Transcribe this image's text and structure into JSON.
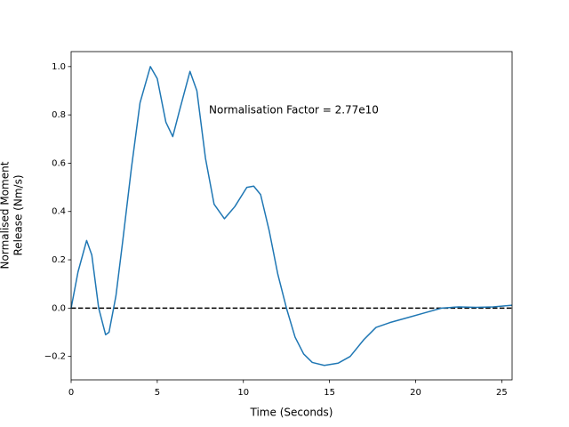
{
  "chart_data": {
    "type": "line",
    "xlabel": "Time (Seconds)",
    "ylabel": [
      "Normalised Moment",
      "Release (Nm/s)"
    ],
    "annotation": "Normalisation Factor = 2.77e10",
    "x": [
      0,
      0.4,
      0.9,
      1.2,
      1.6,
      2.0,
      2.2,
      2.6,
      3.0,
      3.5,
      4.0,
      4.6,
      5.0,
      5.5,
      5.9,
      6.3,
      6.9,
      7.3,
      7.8,
      8.3,
      8.9,
      9.5,
      10.2,
      10.6,
      11.0,
      11.5,
      12.0,
      12.5,
      13.0,
      13.5,
      14.0,
      14.7,
      15.5,
      16.2,
      17.0,
      17.7,
      18.5,
      19.5,
      20.5,
      21.5,
      22.5,
      23.5,
      24.5,
      25.6
    ],
    "series": [
      {
        "color": "#1f77b4",
        "values": [
          0,
          0.15,
          0.28,
          0.22,
          0.0,
          -0.11,
          -0.1,
          0.05,
          0.28,
          0.58,
          0.85,
          1.0,
          0.95,
          0.77,
          0.71,
          0.82,
          0.98,
          0.9,
          0.62,
          0.43,
          0.37,
          0.42,
          0.5,
          0.505,
          0.47,
          0.32,
          0.14,
          0.0,
          -0.12,
          -0.19,
          -0.225,
          -0.237,
          -0.228,
          -0.2,
          -0.13,
          -0.08,
          -0.06,
          -0.04,
          -0.02,
          0.0,
          0.005,
          0.003,
          0.005,
          0.012
        ]
      }
    ],
    "reference_line": {
      "value": 0,
      "color": "#000000",
      "style": "dashed"
    },
    "xlim": [
      0,
      25.6
    ],
    "ylim": [
      -0.297,
      1.062
    ],
    "xticks": [
      0,
      5,
      10,
      15,
      20,
      25
    ],
    "yticks": [
      {
        "value": -0.2,
        "label": "−0.2"
      },
      {
        "value": 0.0,
        "label": "0.0"
      },
      0.2,
      0.4,
      0.6,
      0.8,
      {
        "value": 1.0,
        "label": "1.0"
      }
    ],
    "grid": false
  }
}
